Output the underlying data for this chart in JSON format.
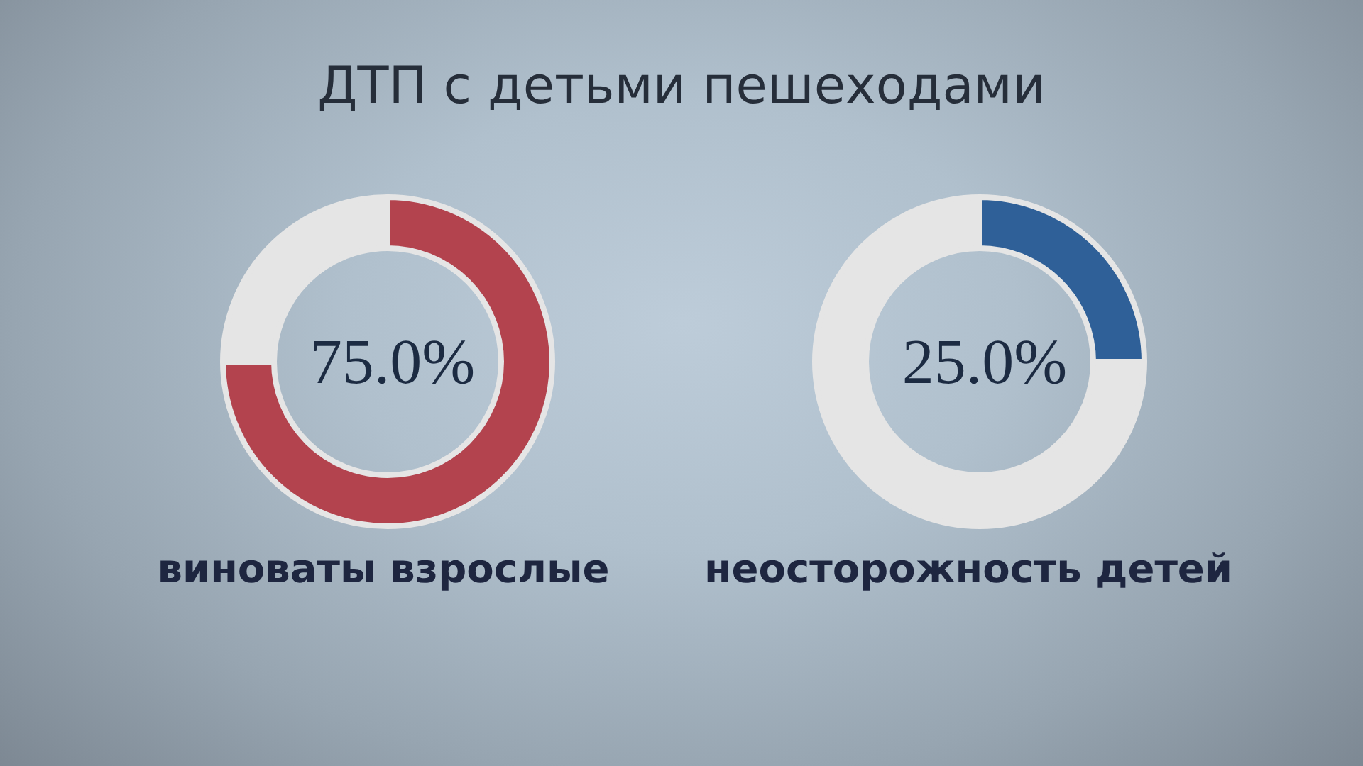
{
  "chart_data": [
    {
      "type": "donut",
      "title": "ДТП с детьми пешеходами",
      "categories": [
        null,
        null
      ],
      "values": [
        75,
        25
      ],
      "colors": [
        "#b3434e",
        "#e5e5e5"
      ],
      "value_labels": [
        "75.0%",
        null
      ],
      "annotations": [
        "виноваты взрослые"
      ]
    },
    {
      "type": "donut",
      "categories": [
        null,
        null
      ],
      "values": [
        25,
        75
      ],
      "colors": [
        "#2f6098",
        "#e5e5e5"
      ],
      "value_labels": [
        "25.0%",
        null
      ],
      "annotations": [
        "неосторожность детей"
      ]
    }
  ]
}
